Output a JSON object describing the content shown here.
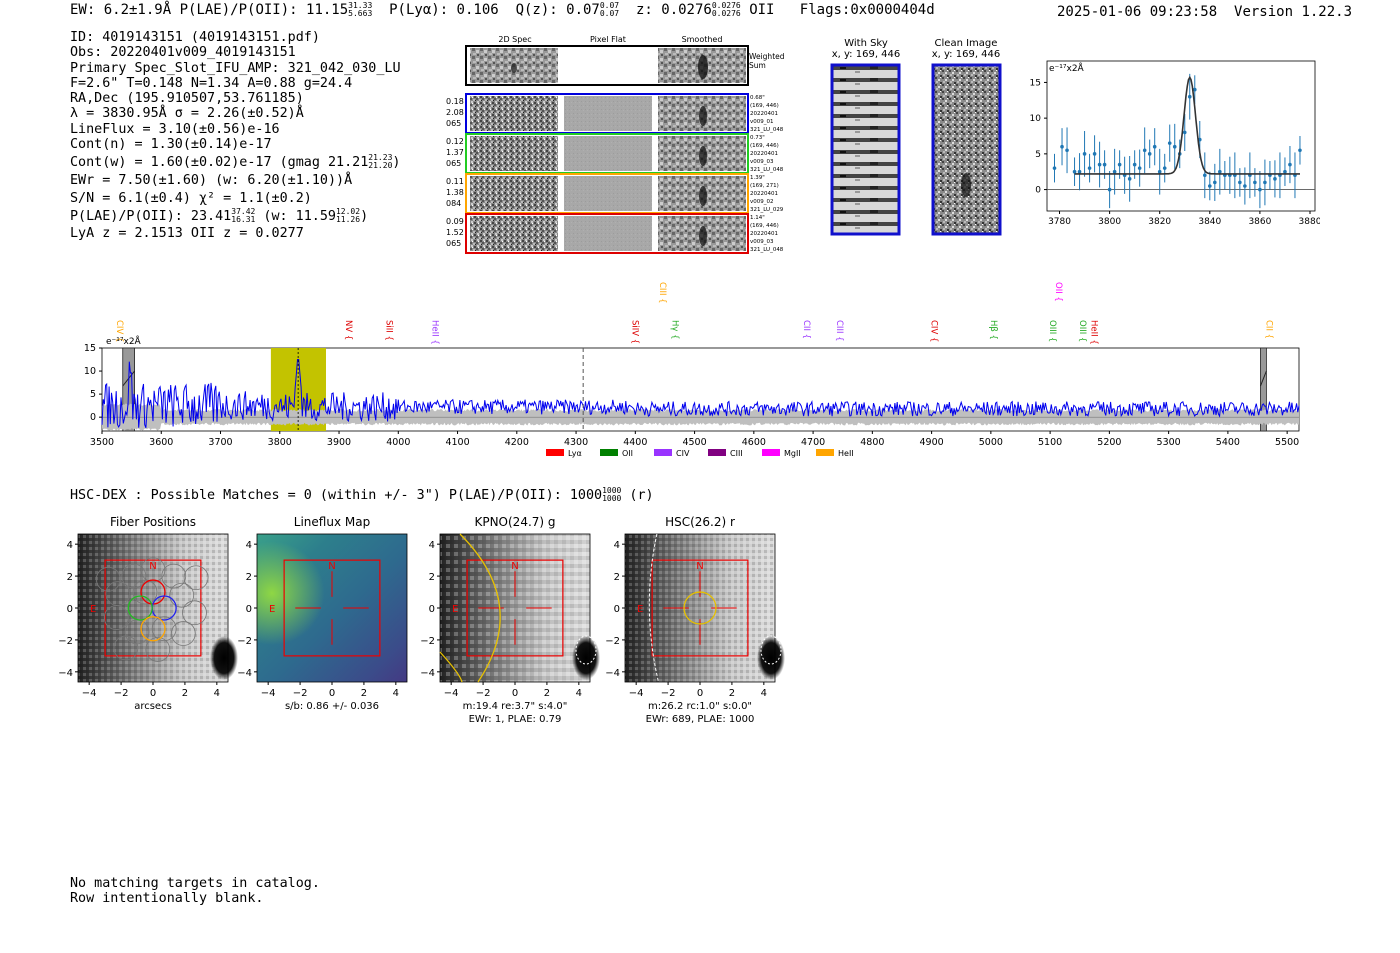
{
  "header": {
    "ew_label": "EW: 6.2±1.9Å",
    "plae_label": "P(LAE)/P(OII): 11.15",
    "plae_hi": "31.33",
    "plae_lo": "5.663",
    "plya_label": "P(Lyα): 0.106",
    "q_label": "Q(z): 0.07",
    "q_hi": "0.07",
    "q_lo": "0.07",
    "z_label": "z: 0.0276",
    "z_hi": "0.0276",
    "z_lo": "0.0276",
    "z_line": "OII",
    "flags": "Flags:0x0000404d",
    "datetime": "2025-01-06 09:23:58",
    "version": "Version 1.22.3"
  },
  "info": {
    "id": "ID: 4019143151 (4019143151.pdf)",
    "obs": "Obs: 20220401v009_4019143151",
    "primary": "Primary Spec_Slot_IFU_AMP: 321_042_030_LU",
    "fwhm": "F=2.6\"  T=0.148  N=1.34  A=0.88  g=24.4",
    "radec": "RA,Dec (195.910507,53.761185)",
    "lambda": "λ = 3830.95Å   σ = 2.26(±0.52)Å",
    "lineflux": "LineFlux = 3.10(±0.56)e-16",
    "contn": "Cont(n) = 1.30(±0.14)e-17",
    "contw": "Cont(w) = 1.60(±0.02)e-17 (gmag 21.21",
    "contw_hi": "21.23",
    "contw_lo": "21.20",
    "ewr": "EWr = 7.50(±1.60) (w: 6.20(±1.10))Å",
    "sn": "S/N = 6.1(±0.4)  χ² = 1.1(±0.2)",
    "plae2": "P(LAE)/P(OII): 23.41",
    "plae2_hi": "37.42",
    "plae2_lo": "16.31",
    "plae2_w": "(w: 11.59",
    "plae2_w_hi": "12.02",
    "plae2_w_lo": "11.26",
    "lyaz": "LyA z = 2.1513   OII z = 0.0277"
  },
  "cutouts": {
    "col_2d": "2D Spec",
    "col_flat": "Pixel Flat",
    "col_smooth": "Smoothed",
    "weighted": "Weighted Sum",
    "rows": [
      {
        "left": [
          "0.18",
          "2.08",
          "065"
        ],
        "right": [
          "0.68\"",
          "(169, 446)",
          "20220401",
          "v009_01",
          "321_LU_048"
        ],
        "color": "#0000dd"
      },
      {
        "left": [
          "0.12",
          "1.37",
          "065"
        ],
        "right": [
          "0.73\"",
          "(169, 446)",
          "20220401",
          "v009_03",
          "321_LU_048"
        ],
        "color": "#22cc22"
      },
      {
        "left": [
          "0.11",
          "1.38",
          "084"
        ],
        "right": [
          "1.39\"",
          "(169, 271)",
          "20220401",
          "v009_02",
          "321_LU_029"
        ],
        "color": "#ffa500"
      },
      {
        "left": [
          "0.09",
          "1.52",
          "065"
        ],
        "right": [
          "1.14\"",
          "(169, 446)",
          "20220401",
          "v009_03",
          "321_LU_048"
        ],
        "color": "#dd0000"
      }
    ],
    "with_sky_title": "With Sky",
    "with_sky_xy": "x, y: 169, 446",
    "clean_title": "Clean Image",
    "clean_xy": "x, y: 169, 446"
  },
  "fit_chart": {
    "unit": "e⁻¹⁷x2Å",
    "x_ticks": [
      "3780",
      "3800",
      "3820",
      "3840",
      "3860",
      "3880"
    ],
    "y_ticks": [
      "15",
      "10",
      "5",
      "0"
    ]
  },
  "spectrum": {
    "unit": "e⁻¹⁷x2Å",
    "x_ticks": [
      "3500",
      "3600",
      "3700",
      "3800",
      "3900",
      "4000",
      "4100",
      "4200",
      "4300",
      "4400",
      "4500",
      "4600",
      "4700",
      "4800",
      "4900",
      "5000",
      "5100",
      "5200",
      "5300",
      "5400",
      "5500"
    ],
    "y_ticks": [
      "15",
      "10",
      "5",
      "0"
    ],
    "line_labels": [
      {
        "name": "CIV",
        "color": "#ffa500",
        "x": 3520,
        "row": 2
      },
      {
        "name": "NV",
        "color": "#dd0000",
        "x": 3907,
        "row": 2
      },
      {
        "name": "SiII",
        "color": "#dd0000",
        "x": 3975,
        "row": 2
      },
      {
        "name": "HeII",
        "color": "#9933ff",
        "x": 4053,
        "row": 2
      },
      {
        "name": "SiIV",
        "color": "#dd0000",
        "x": 4390,
        "row": 2
      },
      {
        "name": "CIII",
        "color": "#ffa500",
        "x": 4437,
        "row": 0
      },
      {
        "name": "Hγ",
        "color": "#22aa22",
        "x": 4458,
        "row": 2
      },
      {
        "name": "CII",
        "color": "#9933ff",
        "x": 4680,
        "row": 2
      },
      {
        "name": "CIII",
        "color": "#9933ff",
        "x": 4735,
        "row": 2
      },
      {
        "name": "CIV",
        "color": "#dd0000",
        "x": 4895,
        "row": 2
      },
      {
        "name": "Hβ",
        "color": "#22aa22",
        "x": 4995,
        "row": 2
      },
      {
        "name": "OII",
        "color": "#ff00ff",
        "x": 5105,
        "row": 0
      },
      {
        "name": "OIII",
        "color": "#22aa22",
        "x": 5095,
        "row": 2
      },
      {
        "name": "OIII",
        "color": "#22aa22",
        "x": 5145,
        "row": 2
      },
      {
        "name": "HeII",
        "color": "#dd0000",
        "x": 5165,
        "row": 2
      },
      {
        "name": "CII",
        "color": "#ffa500",
        "x": 5460,
        "row": 2
      }
    ],
    "legend": [
      {
        "name": "Lyα",
        "color": "#ff0000"
      },
      {
        "name": "OII",
        "color": "#008000"
      },
      {
        "name": "CIV",
        "color": "#9933ff"
      },
      {
        "name": "CIII",
        "color": "#800080"
      },
      {
        "name": "MgII",
        "color": "#ff00ff"
      },
      {
        "name": "HeII",
        "color": "#ffa500"
      }
    ]
  },
  "hsc": {
    "summary": "HSC-DEX : Possible Matches = 0 (within +/- 3\")  P(LAE)/P(OII): 1000",
    "summary_hi": "1000",
    "summary_lo": "1000",
    "summary_tail": "(r)"
  },
  "panels": [
    {
      "title": "Fiber Positions",
      "caption1": "arcsecs",
      "caption2": "",
      "caption3": ""
    },
    {
      "title": "Lineflux Map",
      "caption1": "s/b: 0.86 +/- 0.036",
      "caption2": "",
      "caption3": ""
    },
    {
      "title": "KPNO(24.7) g",
      "caption1": "m:19.4  re:3.7\"  s:4.0\"",
      "caption2": "EWr: 1, PLAE: 0.79",
      "caption3": ""
    },
    {
      "title": "HSC(26.2) r",
      "caption1": "m:26.2 rc:1.0\"  s:0.0\"",
      "caption2": "EWr: 689, PLAE: 1000",
      "caption3": ""
    }
  ],
  "panel_ticks": {
    "x": [
      "−4",
      "−2",
      "0",
      "2",
      "4"
    ],
    "y": [
      "4",
      "2",
      "0",
      "−2",
      "−4"
    ],
    "north": "N",
    "east": "E"
  },
  "footer": {
    "line1": "No matching targets in catalog.",
    "line2": "Row intentionally blank."
  },
  "chart_data": [
    {
      "type": "scatter",
      "title": "",
      "xlabel": "",
      "ylabel": "e⁻¹⁷x2Å",
      "xlim": [
        3775,
        3882
      ],
      "ylim": [
        -3,
        18
      ],
      "x": [
        3778,
        3781,
        3783,
        3786,
        3788,
        3790,
        3792,
        3794,
        3796,
        3798,
        3800,
        3802,
        3804,
        3806,
        3808,
        3810,
        3812,
        3814,
        3816,
        3818,
        3820,
        3822,
        3824,
        3826,
        3828,
        3830,
        3832,
        3834,
        3836,
        3838,
        3840,
        3842,
        3844,
        3846,
        3848,
        3850,
        3852,
        3854,
        3856,
        3858,
        3860,
        3862,
        3864,
        3866,
        3868,
        3870,
        3872,
        3874,
        3876
      ],
      "y": [
        3,
        6,
        5.5,
        2.5,
        2.5,
        5,
        3,
        5,
        3.5,
        3.5,
        0,
        2.5,
        3.5,
        2,
        1.5,
        3.5,
        3,
        5.5,
        5,
        6,
        2.5,
        3,
        6.5,
        6,
        5,
        8,
        13,
        14,
        7,
        2,
        0.5,
        1,
        2.5,
        2,
        2,
        2,
        1,
        0.5,
        2,
        1,
        0,
        1,
        2,
        1.5,
        2,
        2.5,
        3.5,
        2,
        5.5
      ],
      "fit_peak": 13.5,
      "fit_center": 3832,
      "fit_sigma": 2.3,
      "fit_base": 2.2
    },
    {
      "type": "line",
      "title": "",
      "xlabel": "",
      "ylabel": "e⁻¹⁷x2Å",
      "xlim": [
        3500,
        5520
      ],
      "ylim": [
        -3,
        15
      ],
      "series": [
        {
          "name": "",
          "description_values": "noisy continuum ~2-3 with emission peak ~14 at 3831"
        }
      ],
      "highlight_range": [
        3785,
        3878
      ],
      "peak_x": 3831,
      "dashed_x": 4312,
      "masked_ranges": [
        [
          3535,
          3555
        ],
        [
          5455,
          5465
        ]
      ]
    }
  ]
}
